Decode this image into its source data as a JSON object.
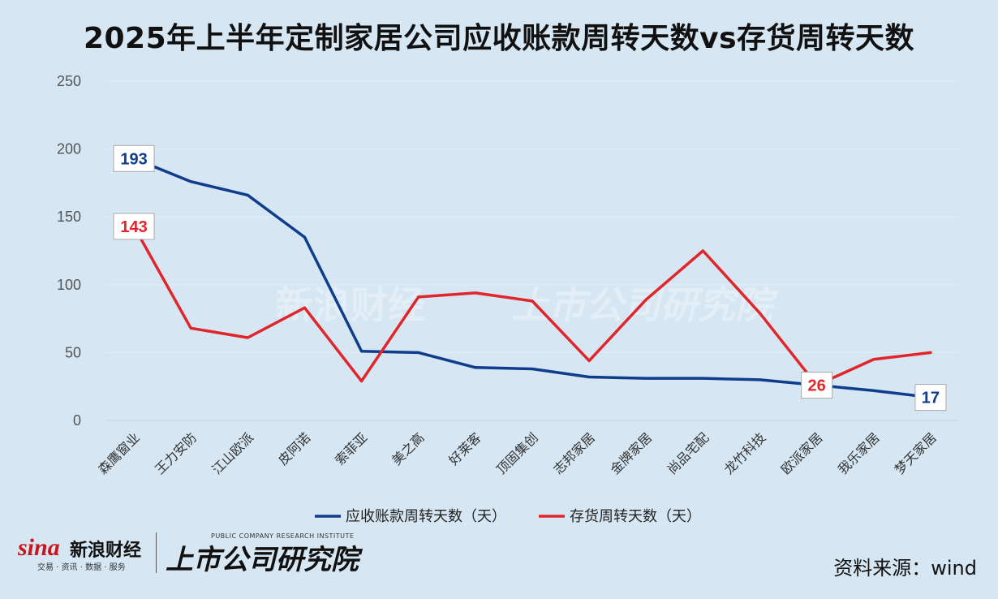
{
  "title": "2025年上半年定制家居公司应收账款周转天数vs存货周转天数",
  "source": "资料来源：wind",
  "logo": {
    "brand_en": "sina",
    "brand_cn": "新浪财经",
    "brand_sub": "交易 · 资讯 · 数据 · 服务",
    "institute_cn": "上市公司研究院",
    "institute_en": "PUBLIC COMPANY RESEARCH INSTITUTE"
  },
  "colors": {
    "receivable": "#0f3d8c",
    "inventory": "#e0262b",
    "background": "#d6e6f2"
  },
  "chart_data": {
    "type": "line",
    "categories": [
      "森鹰窗业",
      "王力安防",
      "江山欧派",
      "皮阿诺",
      "索菲亚",
      "美之高",
      "好莱客",
      "顶固集创",
      "志邦家居",
      "金牌家居",
      "尚品宅配",
      "龙竹科技",
      "欧派家居",
      "我乐家居",
      "梦天家居"
    ],
    "series": [
      {
        "name": "应收账款周转天数（天）",
        "color": "#0f3d8c",
        "values": [
          193,
          176,
          166,
          135,
          51,
          50,
          39,
          38,
          32,
          31,
          31,
          30,
          26,
          22,
          17
        ]
      },
      {
        "name": "存货周转天数（天）",
        "color": "#e0262b",
        "values": [
          143,
          68,
          61,
          83,
          29,
          91,
          94,
          88,
          44,
          89,
          125,
          79,
          26,
          45,
          50
        ]
      }
    ],
    "data_labels": [
      {
        "series": 0,
        "index": 0,
        "text": "193"
      },
      {
        "series": 1,
        "index": 0,
        "text": "143"
      },
      {
        "series": 1,
        "index": 12,
        "text": "26"
      },
      {
        "series": 0,
        "index": 14,
        "text": "17"
      }
    ],
    "yticks": [
      0,
      50,
      100,
      150,
      200,
      250
    ],
    "ylim": [
      0,
      250
    ],
    "grid": true,
    "legend_position": "bottom"
  }
}
